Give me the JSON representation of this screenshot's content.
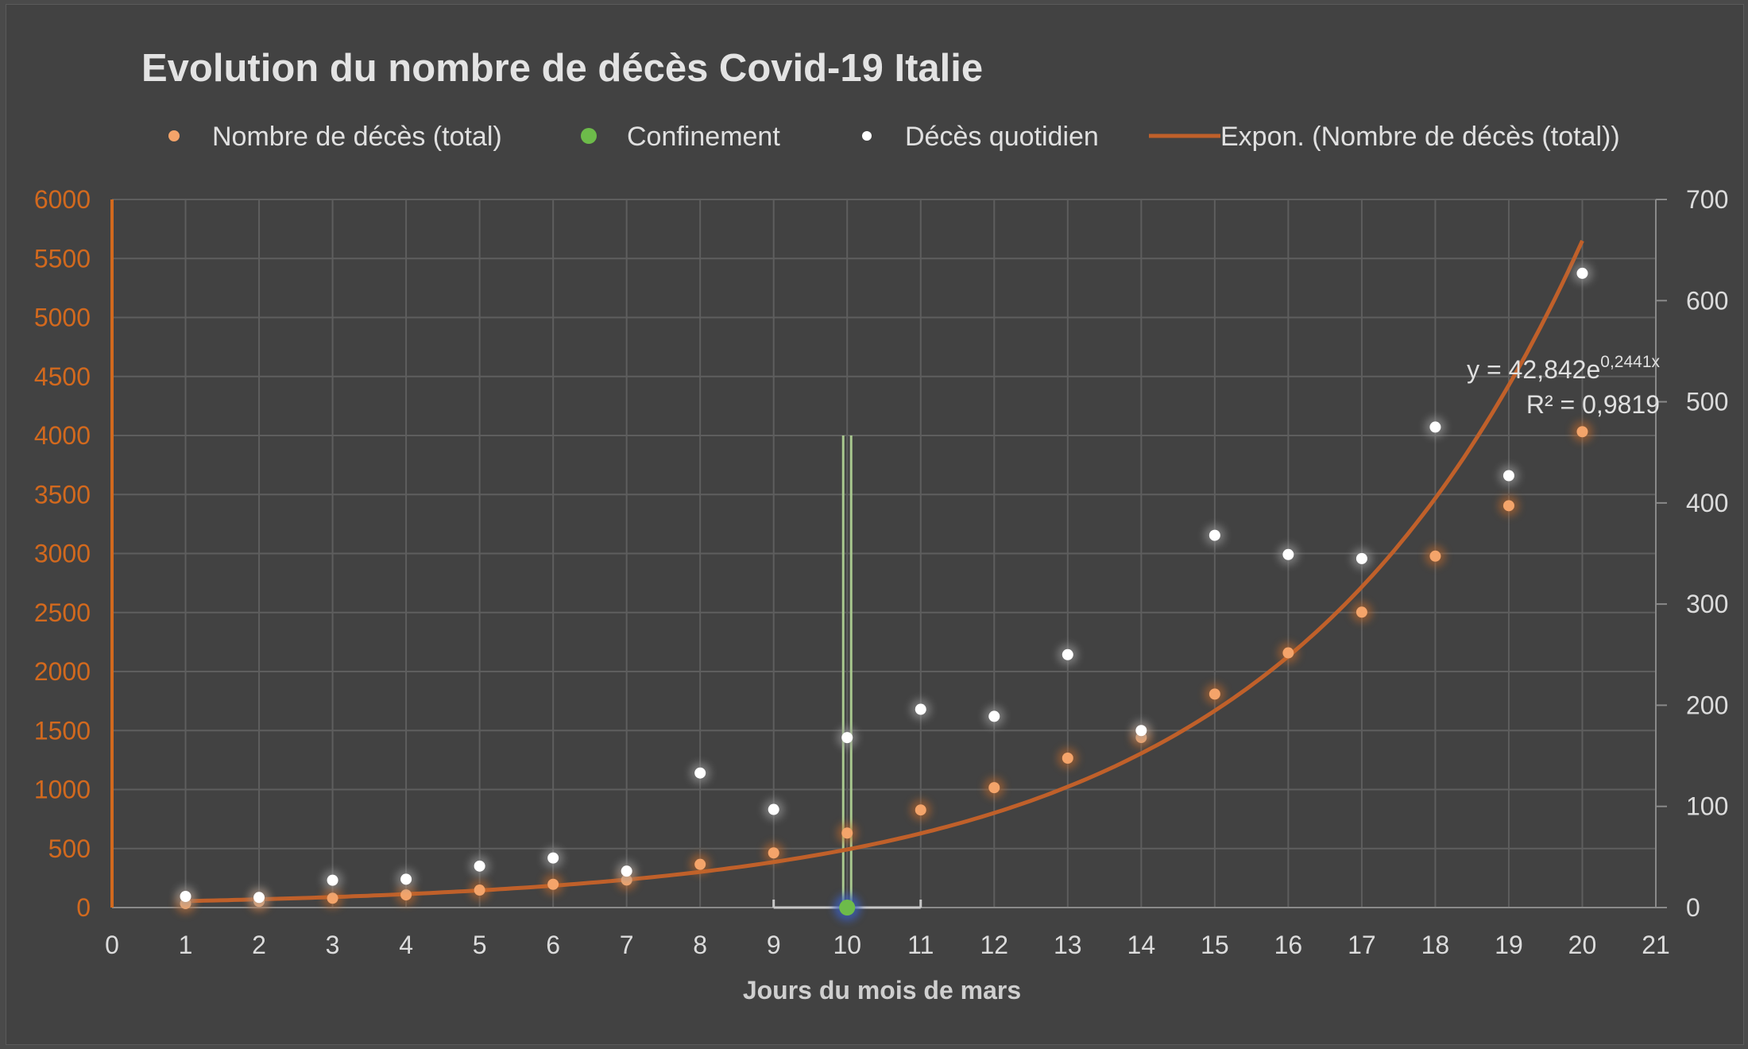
{
  "chart_data": {
    "type": "scatter",
    "title": "Evolution du nombre de décès Covid-19 Italie",
    "xlabel": "Jours du mois de mars",
    "ylabel_left": "",
    "ylabel_right": "",
    "xlim": [
      0,
      21
    ],
    "ylim_left": [
      0,
      6000
    ],
    "ylim_right": [
      0,
      700
    ],
    "x_ticks": [
      "0",
      "1",
      "2",
      "3",
      "4",
      "5",
      "6",
      "7",
      "8",
      "9",
      "10",
      "11",
      "12",
      "13",
      "14",
      "15",
      "16",
      "17",
      "18",
      "19",
      "20",
      "21"
    ],
    "y_left_ticks": [
      "0",
      "500",
      "1000",
      "1500",
      "2000",
      "2500",
      "3000",
      "3500",
      "4000",
      "4500",
      "5000",
      "5500",
      "6000"
    ],
    "y_right_ticks": [
      "0",
      "100",
      "200",
      "300",
      "400",
      "500",
      "600",
      "700"
    ],
    "grid": true,
    "legend_position": "top",
    "colors": {
      "total": "#f4a46a",
      "trend": "#c0602a",
      "daily": "#ffffff",
      "lockdown": "#6dbb4a",
      "left_axis": "#d2691e"
    },
    "series": [
      {
        "name": "Nombre de décès (total)",
        "axis": "left",
        "x": [
          1,
          2,
          3,
          4,
          5,
          6,
          7,
          8,
          9,
          10,
          11,
          12,
          13,
          14,
          15,
          16,
          17,
          18,
          19,
          20
        ],
        "y": [
          34,
          52,
          79,
          107,
          148,
          197,
          233,
          366,
          463,
          631,
          827,
          1016,
          1266,
          1441,
          1809,
          2158,
          2503,
          2978,
          3405,
          4032
        ]
      },
      {
        "name": "Confinement",
        "axis": "left",
        "x": [
          10
        ],
        "y": [
          0
        ],
        "error_bar": {
          "y_top": 4000,
          "x_min": 9,
          "x_max": 11
        }
      },
      {
        "name": "Décès quotidien",
        "axis": "right",
        "x": [
          1,
          2,
          3,
          4,
          5,
          6,
          7,
          8,
          9,
          10,
          11,
          12,
          13,
          14,
          15,
          16,
          17,
          18,
          19,
          20
        ],
        "y": [
          11,
          10,
          27,
          28,
          41,
          49,
          36,
          133,
          97,
          168,
          196,
          189,
          250,
          175,
          368,
          349,
          345,
          475,
          427,
          627
        ]
      }
    ],
    "trendline": {
      "name": "Expon. (Nombre de décès (total))",
      "axis": "left",
      "type": "exponential",
      "a": 42.842,
      "b": 0.2441,
      "x_range": [
        1,
        20
      ],
      "equation_base": "y = 42,842e",
      "equation_exponent": "0,2441x",
      "r2": "R² = 0,9819"
    }
  }
}
